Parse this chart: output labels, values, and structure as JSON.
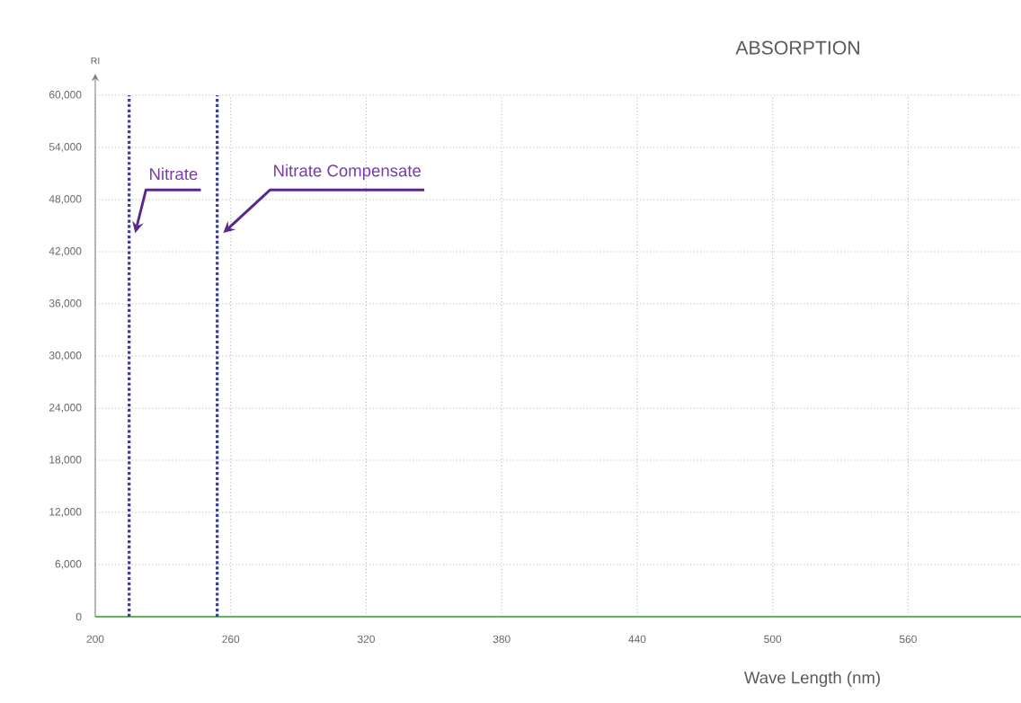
{
  "chart_data": {
    "type": "line",
    "title": "ABSORPTION",
    "xlabel": "Wave Length  (nm)",
    "ylabel": "RI",
    "series": [
      {
        "color": "#5cb85c",
        "x": [
          200,
          610
        ],
        "values": [
          0,
          0
        ]
      }
    ],
    "xlim": [
      200,
      610
    ],
    "xticks": [
      200,
      260,
      320,
      380,
      440,
      500,
      560
    ],
    "ylim": [
      0,
      60000
    ],
    "yticks": [
      {
        "value": 0,
        "label": "0"
      },
      {
        "value": 6000,
        "label": "6,000"
      },
      {
        "value": 12000,
        "label": "12,000"
      },
      {
        "value": 18000,
        "label": "18,000"
      },
      {
        "value": 24000,
        "label": "24,000"
      },
      {
        "value": 30000,
        "label": "30,000"
      },
      {
        "value": 36000,
        "label": "36,000"
      },
      {
        "value": 42000,
        "label": "42,000"
      },
      {
        "value": 48000,
        "label": "48,000"
      },
      {
        "value": 54000,
        "label": "54,000"
      },
      {
        "value": 60000,
        "label": "60,000"
      }
    ],
    "ref_lines": [
      {
        "axis": "x",
        "value": 215,
        "label": "Nitrate",
        "color": "#3b3b8f",
        "line_style": "dotted"
      },
      {
        "axis": "x",
        "value": 254,
        "label": "Nitrate Compensate",
        "color": "#3b3b8f",
        "line_style": "dotted"
      }
    ],
    "grid": true,
    "marker": "none",
    "line_style": "solid"
  }
}
